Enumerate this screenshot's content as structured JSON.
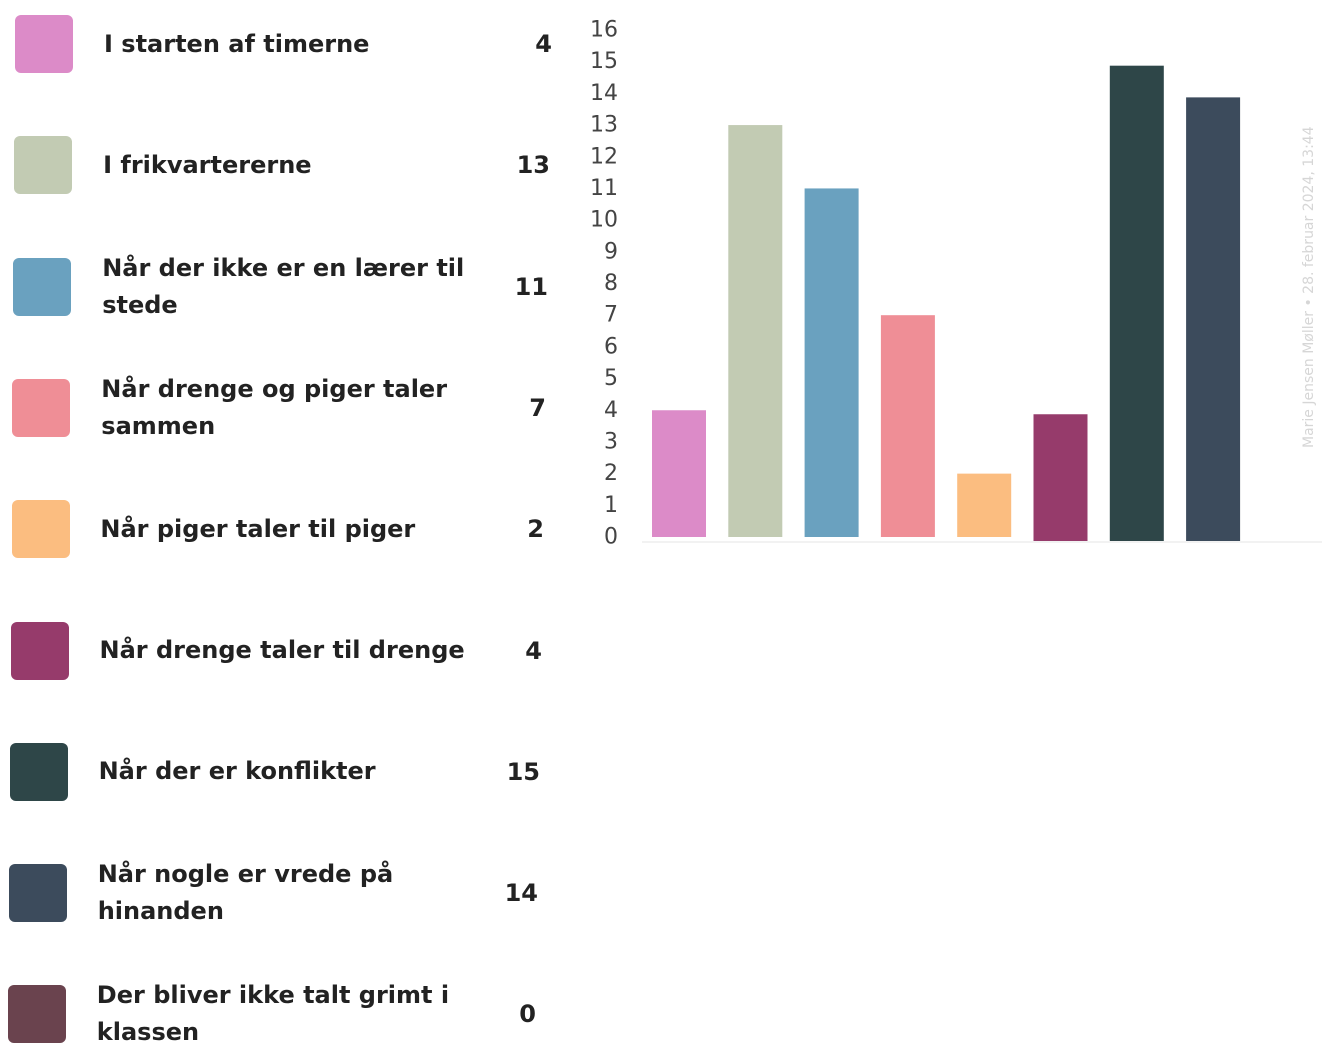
{
  "chart_data": {
    "type": "bar",
    "categories": [
      "I starten af timerne",
      "I frikvartererne",
      "Når der ikke er en lærer til stede",
      "Når drenge og piger taler sammen",
      "Når piger taler til piger",
      "Når drenge taler til drenge",
      "Når der er konflikter",
      "Når nogle er vrede på hinanden",
      "Der bliver ikke talt grimt i klassen"
    ],
    "values": [
      4,
      13,
      11,
      7,
      2,
      4,
      15,
      14,
      0
    ],
    "colors": [
      "#dc8bc8",
      "#c2cbb3",
      "#6aa1bf",
      "#ef8e96",
      "#fbbd80",
      "#963b6b",
      "#2e4648",
      "#3c4b5c",
      "#6a434e"
    ],
    "count_labels": [
      "4",
      "13",
      "11",
      "7",
      "2",
      "4",
      "15",
      "14",
      "0"
    ],
    "yticks": [
      "0",
      "1",
      "2",
      "3",
      "4",
      "5",
      "6",
      "7",
      "8",
      "9",
      "10",
      "11",
      "12",
      "13",
      "14",
      "15",
      "16"
    ],
    "ylim": [
      0,
      16
    ],
    "xlabel": "",
    "ylabel": "",
    "legend_position": "left",
    "grid": false
  },
  "watermark": "Marie Jensen Møller • 28. februar 2024, 13:44"
}
